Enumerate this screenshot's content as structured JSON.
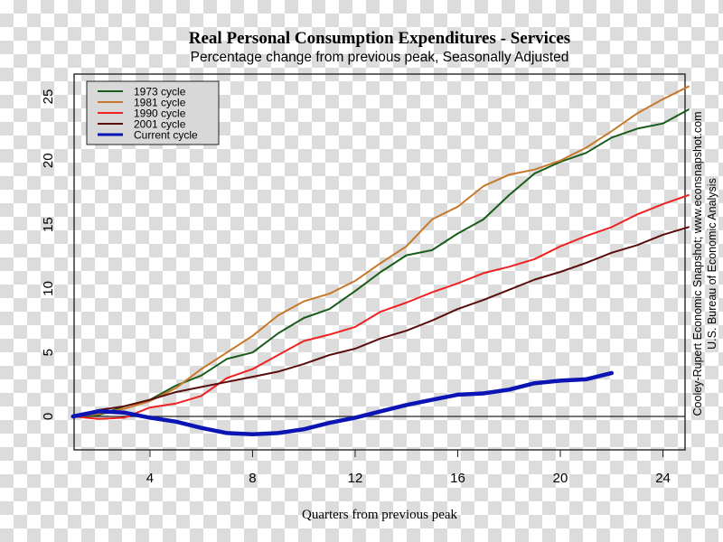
{
  "chart_data": {
    "type": "line",
    "title": "Real Personal Consumption Expenditures - Services",
    "subtitle": "Percentage change from previous peak, Seasonally Adjusted",
    "xlabel": "Quarters from previous peak",
    "ylabel": "",
    "xlim": [
      1,
      25
    ],
    "ylim": [
      -2.5,
      27.5
    ],
    "x_ticks": [
      4,
      8,
      12,
      16,
      20,
      24
    ],
    "x_tick_labels": [
      "4",
      "8",
      "12",
      "16",
      "20",
      "24"
    ],
    "y_ticks": [
      0,
      5,
      10,
      15,
      20,
      25
    ],
    "y_tick_labels": [
      "0",
      "5",
      "10",
      "15",
      "20",
      "25"
    ],
    "zero_line": true,
    "grid": false,
    "legend_position": "top-left",
    "source_lines": [
      "Cooley-Rupert Economic Snapshot; www.econsnapshot.com",
      "U.S. Bureau of Economic Analysis"
    ],
    "series": [
      {
        "name": "1973 cycle",
        "color": "#1a5c1a",
        "x": [
          1,
          2,
          3,
          4,
          5,
          6,
          7,
          8,
          9,
          10,
          11,
          12,
          13,
          14,
          15,
          16,
          17,
          18,
          19,
          20,
          21,
          22,
          23,
          24,
          25
        ],
        "values": [
          0,
          0.1,
          0.8,
          1.3,
          2.4,
          3.2,
          4.5,
          5.0,
          6.5,
          7.7,
          8.4,
          9.8,
          11.3,
          12.6,
          13.0,
          14.3,
          15.4,
          17.3,
          19.0,
          19.9,
          20.6,
          21.8,
          22.5,
          22.9,
          24.0
        ]
      },
      {
        "name": "1981 cycle",
        "color": "#c8782a",
        "x": [
          1,
          2,
          3,
          4,
          5,
          6,
          7,
          8,
          9,
          10,
          11,
          12,
          13,
          14,
          15,
          16,
          17,
          18,
          19,
          20,
          21,
          22,
          23,
          24,
          25
        ],
        "values": [
          0,
          0.2,
          0.6,
          1.2,
          2.2,
          3.7,
          5.0,
          6.3,
          7.9,
          9.0,
          9.6,
          10.6,
          12.0,
          13.3,
          15.4,
          16.4,
          18.0,
          18.9,
          19.3,
          20.0,
          21.0,
          22.3,
          23.7,
          24.8,
          25.8
        ]
      },
      {
        "name": "1990 cycle",
        "color": "#ee2222",
        "x": [
          1,
          2,
          3,
          4,
          5,
          6,
          7,
          8,
          9,
          10,
          11,
          12,
          13,
          14,
          15,
          16,
          17,
          18,
          19,
          20,
          21,
          22,
          23,
          24,
          25
        ],
        "values": [
          0,
          -0.2,
          -0.1,
          0.7,
          1.0,
          1.6,
          3.0,
          3.7,
          4.8,
          5.9,
          6.4,
          7.0,
          8.2,
          8.9,
          9.7,
          10.4,
          11.2,
          11.7,
          12.3,
          13.3,
          14.1,
          14.8,
          15.8,
          16.6,
          17.3
        ]
      },
      {
        "name": "2001 cycle",
        "color": "#5a0d0d",
        "x": [
          1,
          2,
          3,
          4,
          5,
          6,
          7,
          8,
          9,
          10,
          11,
          12,
          13,
          14,
          15,
          16,
          17,
          18,
          19,
          20,
          21,
          22,
          23,
          24,
          25
        ],
        "values": [
          0,
          0.5,
          0.8,
          1.3,
          1.9,
          2.3,
          2.7,
          3.1,
          3.5,
          4.1,
          4.8,
          5.3,
          6.1,
          6.7,
          7.5,
          8.4,
          9.1,
          9.9,
          10.7,
          11.3,
          12.0,
          12.8,
          13.4,
          14.2,
          14.8
        ]
      },
      {
        "name": "Current cycle",
        "color": "#0a14b4",
        "x": [
          1,
          2,
          3,
          4,
          5,
          6,
          7,
          8,
          9,
          10,
          11,
          12,
          13,
          14,
          15,
          16,
          17,
          18,
          19,
          20,
          21,
          22
        ],
        "values": [
          0,
          0.4,
          0.3,
          -0.1,
          -0.4,
          -0.9,
          -1.3,
          -1.4,
          -1.3,
          -1.0,
          -0.5,
          -0.1,
          0.4,
          0.9,
          1.3,
          1.7,
          1.8,
          2.1,
          2.6,
          2.8,
          2.9,
          3.4
        ]
      }
    ]
  }
}
